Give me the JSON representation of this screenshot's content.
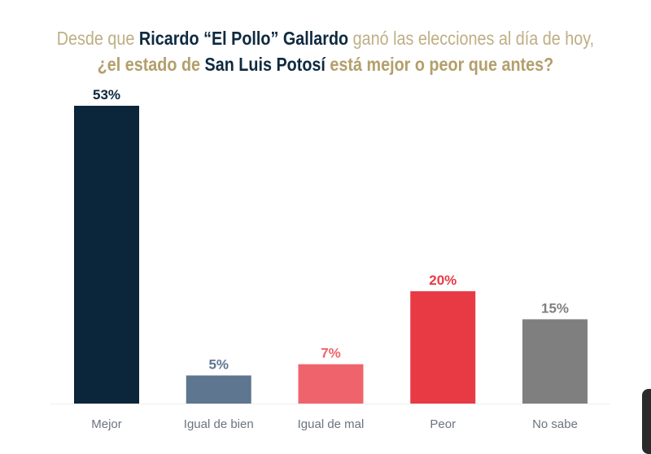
{
  "title": {
    "line1": [
      {
        "text": "Desde que ",
        "style": "gold"
      },
      {
        "text": "Ricardo “El Pollo” Gallardo",
        "style": "navy"
      },
      {
        "text": " ganó las elecciones al día de hoy,",
        "style": "gold"
      }
    ],
    "line2": [
      {
        "text": "¿el estado de ",
        "style": "gold-b"
      },
      {
        "text": "San Luis Potosí",
        "style": "navy"
      },
      {
        "text": " está mejor o peor que antes?",
        "style": "gold-b"
      }
    ]
  },
  "chart_data": {
    "type": "bar",
    "title": "Desde que Ricardo “El Pollo” Gallardo ganó las elecciones al día de hoy, ¿el estado de San Luis Potosí está mejor o peor que antes?",
    "categories": [
      "Mejor",
      "Igual de bien",
      "Igual de mal",
      "Peor",
      "No sabe"
    ],
    "values": [
      53,
      5,
      7,
      20,
      15
    ],
    "data_labels": [
      "53%",
      "5%",
      "7%",
      "20%",
      "15%"
    ],
    "colors": [
      "#0b253a",
      "#5e7690",
      "#ef646c",
      "#e83a45",
      "#7f7f7f"
    ],
    "label_colors": [
      "#0b253a",
      "#5e7690",
      "#ef646c",
      "#e83a45",
      "#7f7f7f"
    ],
    "ylim": [
      0,
      53
    ],
    "grid": false,
    "xlabel": "",
    "ylabel": ""
  }
}
